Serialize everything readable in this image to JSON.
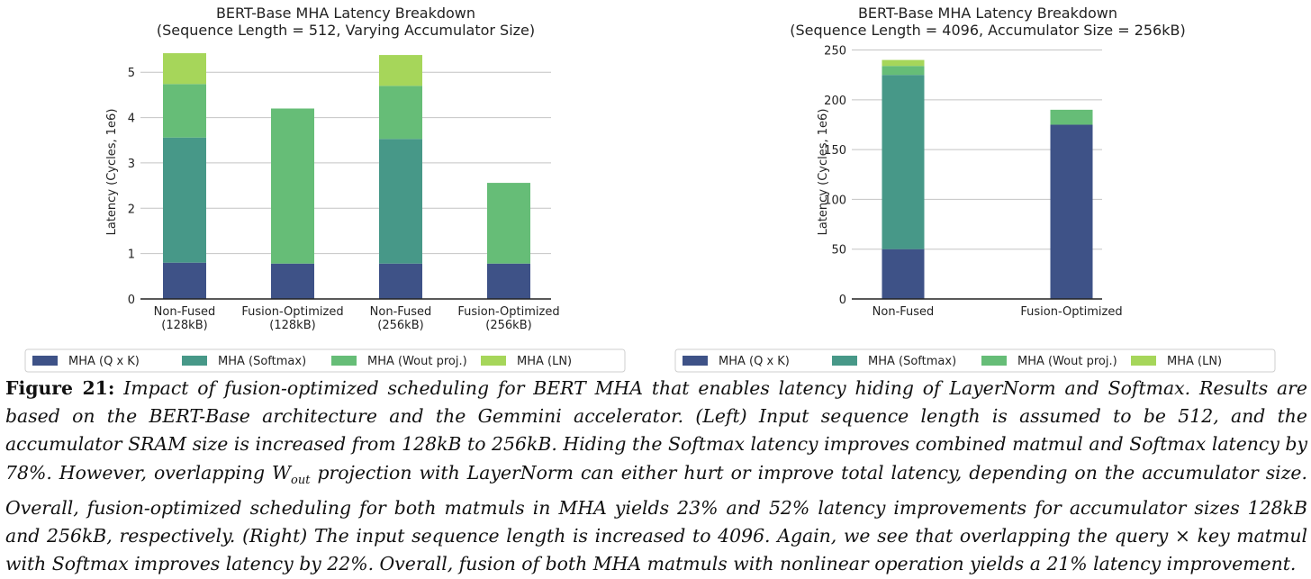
{
  "chart_data": [
    {
      "type": "bar",
      "stacked": true,
      "title": "BERT-Base MHA Latency Breakdown",
      "subtitle": "(Sequence Length = 512, Varying Accumulator Size)",
      "ylabel": "Latency (Cycles, 1e6)",
      "ylim": [
        0,
        5.6
      ],
      "yticks": [
        0,
        1,
        2,
        3,
        4,
        5
      ],
      "grid": true,
      "legend": "bottom",
      "categories": [
        "Non-Fused\n(128kB)",
        "Fusion-Optimized\n(128kB)",
        "Non-Fused\n(256kB)",
        "Fusion-Optimized\n(256kB)"
      ],
      "series": [
        {
          "name": "MHA (Q x K)",
          "color": "#3e5287",
          "values": [
            0.8,
            0.78,
            0.78,
            0.78
          ]
        },
        {
          "name": "MHA (Softmax)",
          "color": "#479888",
          "values": [
            2.76,
            0,
            2.75,
            0
          ]
        },
        {
          "name": "MHA (Wout proj.)",
          "color": "#66bd77",
          "values": [
            1.18,
            3.42,
            1.17,
            1.78
          ]
        },
        {
          "name": "MHA (LN)",
          "color": "#a6d65a",
          "values": [
            0.68,
            0,
            0.68,
            0
          ]
        }
      ]
    },
    {
      "type": "bar",
      "stacked": true,
      "title": "BERT-Base MHA Latency Breakdown",
      "subtitle": "(Sequence Length = 4096, Accumulator Size = 256kB)",
      "ylabel": "Latency (Cycles, 1e6)",
      "ylim": [
        0,
        255
      ],
      "yticks": [
        0,
        50,
        100,
        150,
        200,
        250
      ],
      "grid": true,
      "legend": "bottom",
      "categories": [
        "Non-Fused",
        "Fusion-Optimized"
      ],
      "series": [
        {
          "name": "MHA (Q x K)",
          "color": "#3e5287",
          "values": [
            50,
            175
          ]
        },
        {
          "name": "MHA (Softmax)",
          "color": "#479888",
          "values": [
            175,
            0
          ]
        },
        {
          "name": "MHA (Wout proj.)",
          "color": "#66bd77",
          "values": [
            9,
            15
          ]
        },
        {
          "name": "MHA (LN)",
          "color": "#a6d65a",
          "values": [
            6,
            0
          ]
        }
      ]
    }
  ],
  "caption": {
    "label": "Figure 21:",
    "text": "Impact of fusion-optimized scheduling for BERT MHA that enables latency hiding of LayerNorm and Softmax. Results are based on the BERT-Base architecture and the Gemmini accelerator. (Left) Input sequence length is assumed to be 512, and the accumulator SRAM size is increased from 128kB to 256kB. Hiding the Softmax latency improves combined matmul and Softmax latency by 78%. However, overlapping W_out projection with LayerNorm can either hurt or improve total latency, depending on the accumulator size. Overall, fusion-optimized scheduling for both matmuls in MHA yields 23% and 52% latency improvements for accumulator sizes 128kB and 256kB, respectively. (Right) The input sequence length is increased to 4096. Again, we see that overlapping the query × key matmul with Softmax improves latency by 22%. Overall, fusion of both MHA matmuls with nonlinear operation yields a 21% latency improvement."
  }
}
